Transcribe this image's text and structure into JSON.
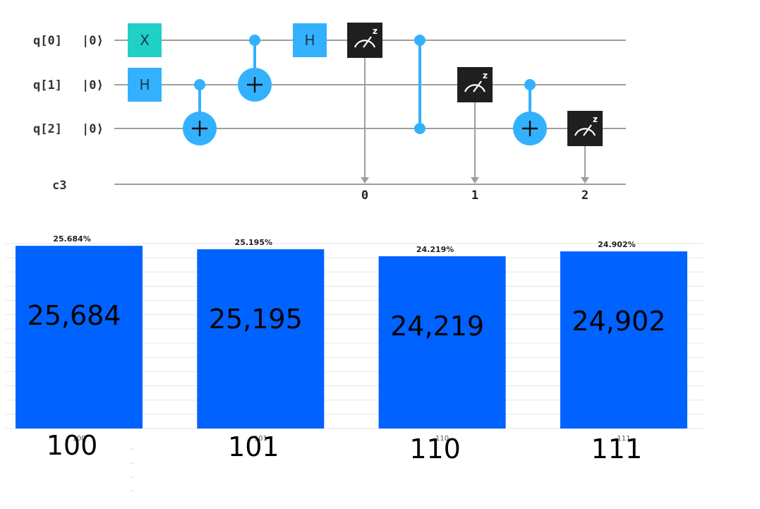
{
  "circuit": {
    "qubits": [
      {
        "label": "q[0]",
        "state": "|0⟩"
      },
      {
        "label": "q[1]",
        "state": "|0⟩"
      },
      {
        "label": "q[2]",
        "state": "|0⟩"
      }
    ],
    "classical_register": "c3",
    "colors": {
      "wire": "#9e9e9e",
      "x_gate": "#1fd1c4",
      "h_gate": "#33b1ff",
      "control": "#33b1ff",
      "measure": "#1f1f1f"
    },
    "gates": [
      {
        "type": "X",
        "qubit": 0,
        "step": 1,
        "label": "X"
      },
      {
        "type": "H",
        "qubit": 1,
        "step": 1,
        "label": "H"
      },
      {
        "type": "CNOT",
        "control": 1,
        "target": 2,
        "step": 2
      },
      {
        "type": "CNOT",
        "control": 0,
        "target": 1,
        "step": 3
      },
      {
        "type": "H",
        "qubit": 0,
        "step": 4,
        "label": "H"
      },
      {
        "type": "MEASURE",
        "qubit": 0,
        "cbit": 0,
        "step": 5,
        "cbit_label": "0"
      },
      {
        "type": "CZ",
        "control": 0,
        "target": 2,
        "step": 6
      },
      {
        "type": "MEASURE",
        "qubit": 1,
        "cbit": 1,
        "step": 7,
        "cbit_label": "1"
      },
      {
        "type": "CNOT",
        "control": 1,
        "target": 2,
        "step": 8
      },
      {
        "type": "MEASURE",
        "qubit": 2,
        "cbit": 2,
        "step": 9,
        "cbit_label": "2"
      }
    ]
  },
  "chart_data": {
    "type": "bar",
    "categories": [
      "100",
      "101",
      "110",
      "111"
    ],
    "values": [
      25684,
      25195,
      24219,
      24902
    ],
    "value_labels": [
      "25,684",
      "25,195",
      "24,219",
      "24,902"
    ],
    "percent_labels": [
      "25.684%",
      "25.195%",
      "24.219%",
      "24.902%"
    ],
    "ylim": [
      0,
      26000
    ],
    "grid": true,
    "bar_color": "#0062ff"
  }
}
